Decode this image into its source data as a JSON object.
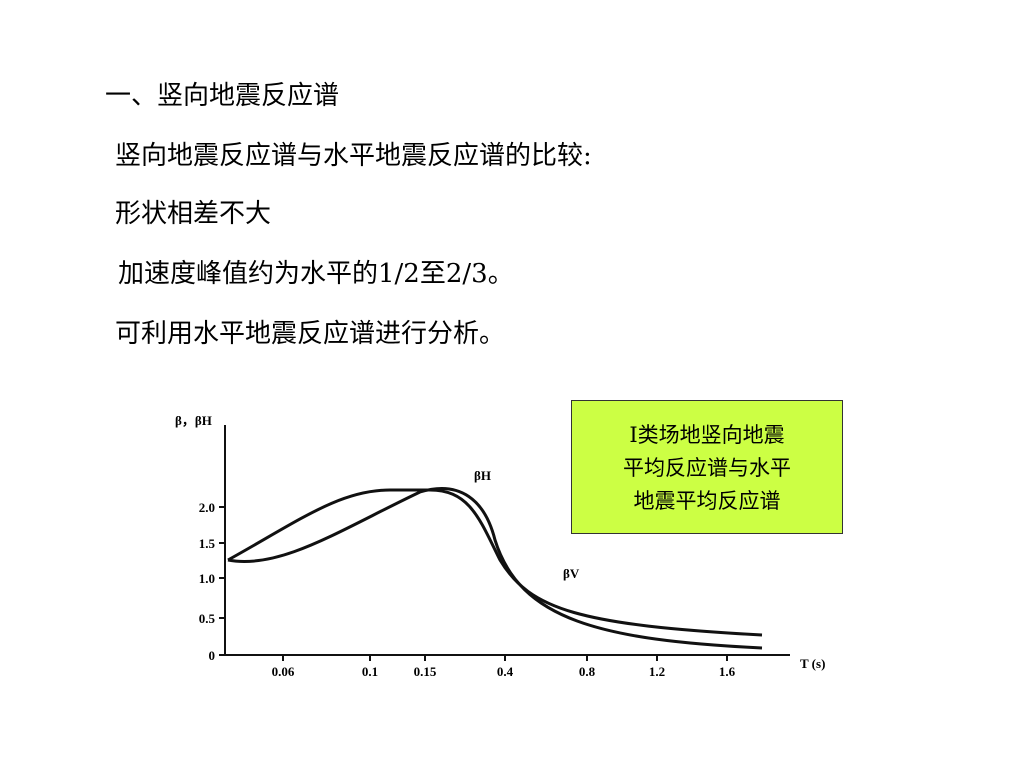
{
  "heading": "一、竖向地震反应谱",
  "lines": [
    "竖向地震反应谱与水平地震反应谱的比较:",
    "形状相差不大",
    "加速度峰值约为水平的1/2至2/3。",
    "可利用水平地震反应谱进行分析。"
  ],
  "figure": {
    "y_label": "β，βH",
    "x_label": "T (s)",
    "yticks": [
      "2.0",
      "1.5",
      "1.0",
      "0.5",
      "0"
    ],
    "xticks": [
      "0.06",
      "0.1",
      "0.15",
      "0.4",
      "0.8",
      "1.2",
      "1.6"
    ],
    "curve_labels": [
      "βH",
      "βV"
    ]
  },
  "caption": [
    "Ⅰ类场地竖向地震",
    "平均反应谱与水平",
    "地震平均反应谱"
  ]
}
